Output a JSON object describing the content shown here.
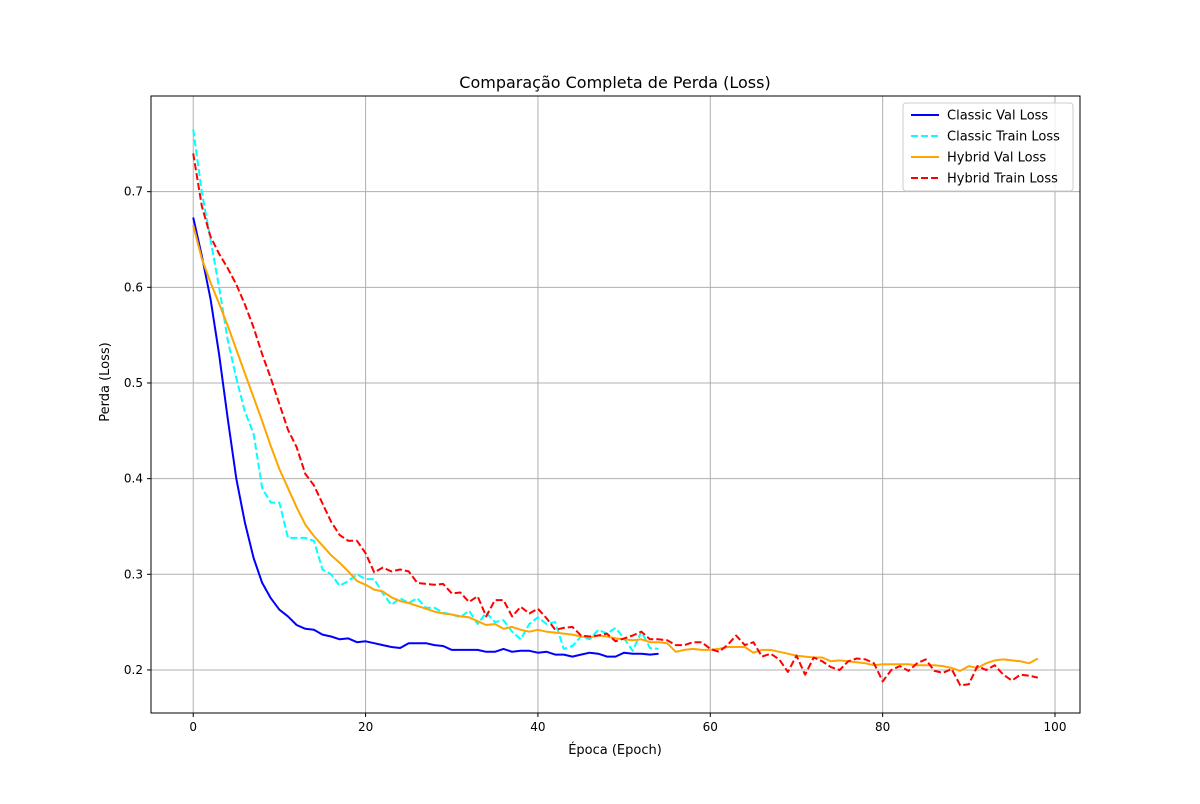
{
  "chart_data": {
    "type": "line",
    "title": "Comparação Completa de Perda (Loss)",
    "xlabel": "Época (Epoch)",
    "ylabel": "Perda (Loss)",
    "xlim": [
      -4.9,
      102.9
    ],
    "ylim": [
      0.155,
      0.8
    ],
    "xticks": [
      0,
      20,
      40,
      60,
      80,
      100
    ],
    "yticks": [
      0.2,
      0.3,
      0.4,
      0.5,
      0.6,
      0.7
    ],
    "grid": true,
    "legend_position": "top-right",
    "series": [
      {
        "name": "Classic Val Loss",
        "color": "#0000ff",
        "dash": "solid",
        "x": [
          0,
          1,
          2,
          3,
          4,
          5,
          6,
          7,
          8,
          9,
          10,
          11,
          12,
          13,
          14,
          15,
          16,
          17,
          18,
          19,
          20,
          21,
          22,
          23,
          24,
          25,
          26,
          27,
          28,
          29,
          30,
          31,
          32,
          33,
          34,
          35,
          36,
          37,
          38,
          39,
          40,
          41,
          42,
          43,
          44,
          45,
          46,
          47,
          48,
          49,
          50,
          51,
          52,
          53,
          54
        ],
        "y": [
          0.673,
          0.633,
          0.588,
          0.53,
          0.463,
          0.4,
          0.354,
          0.317,
          0.291,
          0.275,
          0.263,
          0.256,
          0.247,
          0.243,
          0.242,
          0.237,
          0.235,
          0.232,
          0.233,
          0.229,
          0.23,
          0.228,
          0.226,
          0.224,
          0.223,
          0.228,
          0.228,
          0.228,
          0.226,
          0.225,
          0.221,
          0.221,
          0.221,
          0.221,
          0.219,
          0.219,
          0.222,
          0.219,
          0.22,
          0.22,
          0.218,
          0.219,
          0.216,
          0.216,
          0.214,
          0.216,
          0.218,
          0.217,
          0.214,
          0.214,
          0.218,
          0.217,
          0.217,
          0.216,
          0.217
        ]
      },
      {
        "name": "Classic Train Loss",
        "color": "#00ffff",
        "dash": "dashed",
        "x": [
          0,
          1,
          2,
          3,
          4,
          5,
          6,
          7,
          8,
          9,
          10,
          11,
          12,
          13,
          14,
          15,
          16,
          17,
          18,
          19,
          20,
          21,
          22,
          23,
          24,
          25,
          26,
          27,
          28,
          29,
          30,
          31,
          32,
          33,
          34,
          35,
          36,
          37,
          38,
          39,
          40,
          41,
          42,
          43,
          44,
          45,
          46,
          47,
          48,
          49,
          50,
          51,
          52,
          53,
          54
        ],
        "y": [
          0.765,
          0.7,
          0.65,
          0.6,
          0.545,
          0.505,
          0.47,
          0.447,
          0.39,
          0.375,
          0.375,
          0.338,
          0.338,
          0.338,
          0.335,
          0.305,
          0.3,
          0.288,
          0.293,
          0.3,
          0.295,
          0.295,
          0.28,
          0.268,
          0.275,
          0.27,
          0.275,
          0.265,
          0.265,
          0.26,
          0.258,
          0.255,
          0.262,
          0.248,
          0.26,
          0.25,
          0.252,
          0.24,
          0.232,
          0.248,
          0.255,
          0.248,
          0.25,
          0.222,
          0.225,
          0.235,
          0.232,
          0.242,
          0.238,
          0.244,
          0.233,
          0.22,
          0.24,
          0.223,
          0.222
        ]
      },
      {
        "name": "Hybrid Val Loss",
        "color": "#ffa500",
        "dash": "solid",
        "x": [
          0,
          1,
          2,
          3,
          4,
          5,
          6,
          7,
          8,
          9,
          10,
          11,
          12,
          13,
          14,
          15,
          16,
          17,
          18,
          19,
          20,
          21,
          22,
          23,
          24,
          25,
          26,
          27,
          28,
          29,
          30,
          31,
          32,
          33,
          34,
          35,
          36,
          37,
          38,
          39,
          40,
          41,
          42,
          43,
          44,
          45,
          46,
          47,
          48,
          49,
          50,
          51,
          52,
          53,
          54,
          55,
          56,
          57,
          58,
          59,
          60,
          61,
          62,
          63,
          64,
          65,
          66,
          67,
          68,
          69,
          70,
          71,
          72,
          73,
          74,
          75,
          76,
          77,
          78,
          79,
          80,
          81,
          82,
          83,
          84,
          85,
          86,
          87,
          88,
          89,
          90,
          91,
          92,
          93,
          94,
          95,
          96,
          97,
          98
        ],
        "y": [
          0.665,
          0.63,
          0.605,
          0.583,
          0.56,
          0.535,
          0.51,
          0.485,
          0.46,
          0.434,
          0.41,
          0.39,
          0.37,
          0.352,
          0.34,
          0.33,
          0.32,
          0.312,
          0.303,
          0.293,
          0.289,
          0.284,
          0.282,
          0.276,
          0.272,
          0.27,
          0.267,
          0.264,
          0.261,
          0.259,
          0.258,
          0.256,
          0.255,
          0.251,
          0.247,
          0.248,
          0.243,
          0.245,
          0.242,
          0.24,
          0.242,
          0.24,
          0.239,
          0.238,
          0.237,
          0.235,
          0.234,
          0.236,
          0.235,
          0.233,
          0.232,
          0.231,
          0.232,
          0.229,
          0.229,
          0.228,
          0.219,
          0.221,
          0.222,
          0.221,
          0.221,
          0.222,
          0.224,
          0.224,
          0.224,
          0.218,
          0.221,
          0.221,
          0.219,
          0.217,
          0.215,
          0.214,
          0.213,
          0.213,
          0.209,
          0.21,
          0.209,
          0.208,
          0.207,
          0.205,
          0.206,
          0.206,
          0.206,
          0.206,
          0.205,
          0.205,
          0.205,
          0.204,
          0.202,
          0.199,
          0.204,
          0.202,
          0.207,
          0.21,
          0.211,
          0.21,
          0.209,
          0.207,
          0.212
        ]
      },
      {
        "name": "Hybrid Train Loss",
        "color": "#ff0000",
        "dash": "dashed",
        "x": [
          0,
          1,
          2,
          3,
          4,
          5,
          6,
          7,
          8,
          9,
          10,
          11,
          12,
          13,
          14,
          15,
          16,
          17,
          18,
          19,
          20,
          21,
          22,
          23,
          24,
          25,
          26,
          27,
          28,
          29,
          30,
          31,
          32,
          33,
          34,
          35,
          36,
          37,
          38,
          39,
          40,
          41,
          42,
          43,
          44,
          45,
          46,
          47,
          48,
          49,
          50,
          51,
          52,
          53,
          54,
          55,
          56,
          57,
          58,
          59,
          60,
          61,
          62,
          63,
          64,
          65,
          66,
          67,
          68,
          69,
          70,
          71,
          72,
          73,
          74,
          75,
          76,
          77,
          78,
          79,
          80,
          81,
          82,
          83,
          84,
          85,
          86,
          87,
          88,
          89,
          90,
          91,
          92,
          93,
          94,
          95,
          96,
          97,
          98
        ],
        "y": [
          0.74,
          0.685,
          0.653,
          0.635,
          0.62,
          0.603,
          0.582,
          0.558,
          0.53,
          0.505,
          0.478,
          0.451,
          0.433,
          0.405,
          0.393,
          0.374,
          0.355,
          0.341,
          0.335,
          0.335,
          0.322,
          0.302,
          0.307,
          0.303,
          0.305,
          0.303,
          0.291,
          0.29,
          0.289,
          0.29,
          0.28,
          0.281,
          0.271,
          0.277,
          0.256,
          0.273,
          0.273,
          0.256,
          0.266,
          0.259,
          0.264,
          0.254,
          0.242,
          0.244,
          0.245,
          0.236,
          0.235,
          0.236,
          0.238,
          0.23,
          0.233,
          0.236,
          0.24,
          0.232,
          0.232,
          0.231,
          0.226,
          0.226,
          0.229,
          0.229,
          0.222,
          0.219,
          0.226,
          0.236,
          0.226,
          0.229,
          0.214,
          0.217,
          0.211,
          0.198,
          0.215,
          0.195,
          0.213,
          0.209,
          0.203,
          0.2,
          0.209,
          0.212,
          0.211,
          0.207,
          0.188,
          0.2,
          0.204,
          0.199,
          0.207,
          0.211,
          0.199,
          0.197,
          0.201,
          0.184,
          0.185,
          0.204,
          0.2,
          0.205,
          0.195,
          0.189,
          0.195,
          0.194,
          0.192
        ]
      }
    ]
  }
}
